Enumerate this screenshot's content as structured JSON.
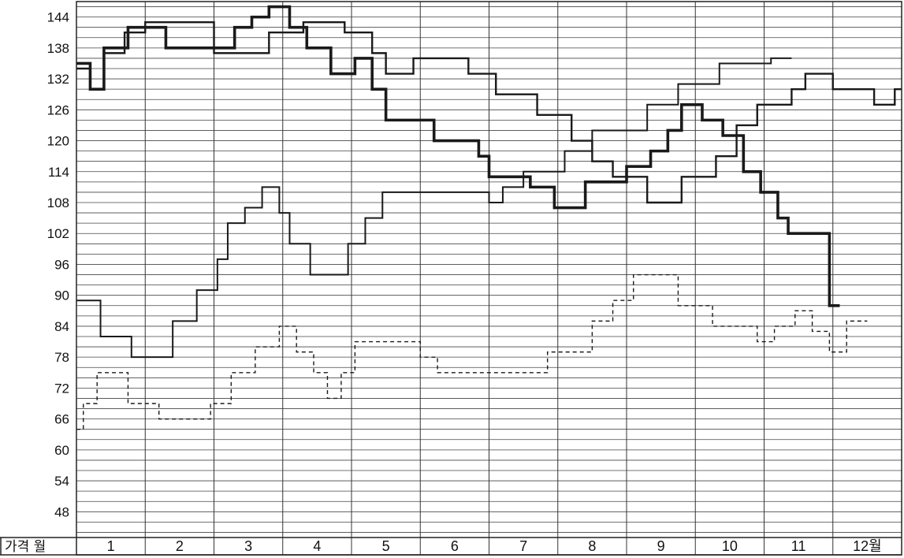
{
  "chart_data": {
    "type": "line",
    "style": "step",
    "corner_label": "가격 월",
    "months": [
      "1",
      "2",
      "3",
      "4",
      "5",
      "6",
      "7",
      "8",
      "9",
      "10",
      "11",
      "12월"
    ],
    "y_ticks": [
      144,
      138,
      132,
      126,
      120,
      114,
      108,
      102,
      96,
      90,
      84,
      78,
      72,
      66,
      60,
      54,
      48
    ],
    "ylim": [
      43,
      147
    ],
    "grid": true,
    "series": [
      {
        "line_style": "medium solid",
        "color": "#1a1a1a",
        "x": [
          0,
          0.2,
          0.4,
          0.7,
          1.0,
          1.3,
          2.0,
          2.8,
          3.3,
          3.7,
          3.9,
          4.3,
          4.5,
          4.9,
          5.7,
          6.1,
          6.7,
          7.2,
          7.5,
          7.8,
          8.3,
          8.6,
          8.8,
          9.3,
          9.6,
          9.9,
          10.4,
          10.6,
          11.0,
          11.6,
          11.9
        ],
        "values": [
          134,
          130,
          137,
          141,
          143,
          143,
          137,
          141,
          143,
          143,
          141,
          137,
          133,
          136,
          133,
          129,
          125,
          120,
          116,
          113,
          108,
          108,
          113,
          117,
          123,
          127,
          130,
          133,
          130,
          127,
          130
        ],
        "note": "upper curve"
      },
      {
        "line_style": "thick solid",
        "color": "#1a1a1a",
        "x": [
          0,
          0.2,
          0.4,
          0.75,
          1.0,
          1.3,
          2.0,
          2.3,
          2.55,
          2.8,
          3.1,
          3.35,
          3.7,
          4.05,
          4.3,
          4.5,
          4.75,
          5.2,
          5.6,
          5.85,
          6.0,
          6.35,
          6.6,
          6.95,
          7.1,
          7.4,
          8.0,
          8.35,
          8.6,
          8.8,
          8.9,
          9.1,
          9.3,
          9.4,
          9.7,
          9.95,
          10.2,
          10.35,
          10.75,
          10.95
        ],
        "values": [
          135,
          130,
          138,
          142,
          142,
          138,
          138,
          142,
          144,
          146,
          142,
          138,
          133,
          136,
          130,
          124,
          124,
          120,
          120,
          117,
          113,
          113,
          111,
          107,
          107,
          112,
          115,
          118,
          122,
          127,
          127,
          124,
          124,
          121,
          114,
          110,
          105,
          102,
          102,
          88
        ],
        "note": "thick descending curve"
      },
      {
        "line_style": "thin solid",
        "color": "#1a1a1a",
        "x": [
          0,
          0.35,
          0.8,
          1.4,
          1.75,
          2.05,
          2.2,
          2.45,
          2.7,
          2.95,
          3.1,
          3.4,
          3.95,
          4.2,
          4.45,
          5.0,
          6.0,
          6.2,
          6.5,
          7.1,
          7.5,
          7.9,
          8.3,
          8.75,
          9.35,
          10.1
        ],
        "values": [
          89,
          82,
          78,
          85,
          91,
          97,
          104,
          107,
          111,
          106,
          100,
          94,
          100,
          105,
          110,
          110,
          108,
          111,
          114,
          118,
          122,
          122,
          127,
          131,
          135,
          136
        ],
        "note": "middle rising curve"
      },
      {
        "line_style": "dashed",
        "color": "#1a1a1a",
        "x": [
          0,
          0.1,
          0.3,
          0.75,
          1.2,
          1.95,
          2.25,
          2.6,
          2.95,
          3.2,
          3.45,
          3.65,
          3.85,
          4.05,
          4.35,
          5.0,
          5.25,
          6.0,
          6.85,
          7.15,
          7.5,
          7.8,
          8.1,
          8.75,
          9.25,
          9.9,
          10.15,
          10.45,
          10.7,
          10.95,
          11.2
        ],
        "values": [
          64,
          69,
          75,
          69,
          66,
          69,
          75,
          80,
          84,
          79,
          75,
          70,
          75,
          81,
          81,
          78,
          75,
          75,
          79,
          79,
          85,
          89,
          94,
          88,
          84,
          81,
          84,
          87,
          83,
          79,
          85
        ],
        "note": "dashed lower curve"
      }
    ]
  }
}
